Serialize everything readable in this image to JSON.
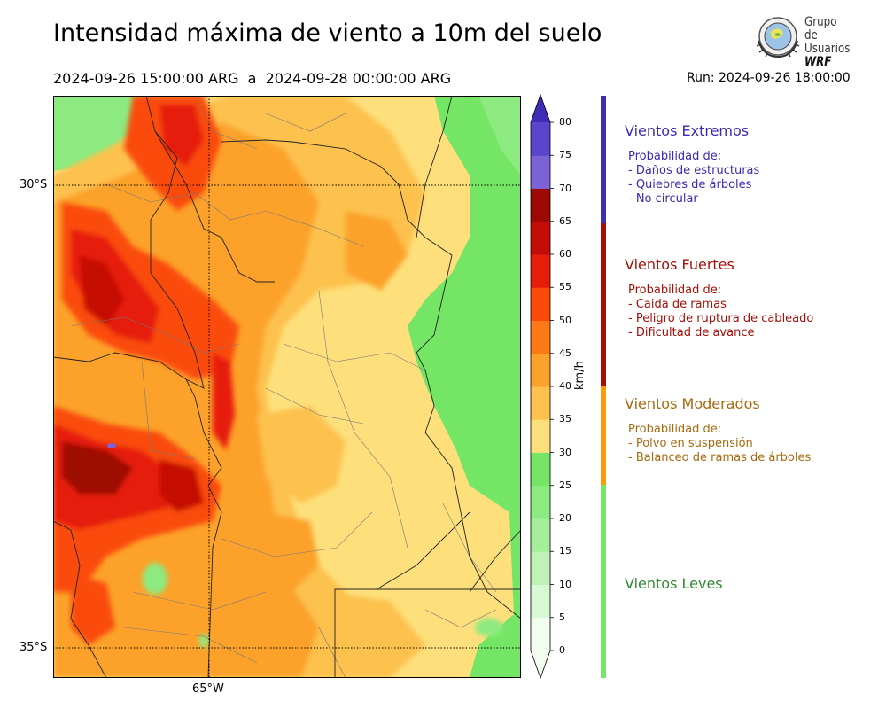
{
  "title": "Intensidad máxima de viento a 10m del suelo",
  "period": "2024-09-26 15:00:00 ARG  a  2024-09-28 00:00:00 ARG",
  "run": "Run: 2024-09-26 18:00:00",
  "logo": {
    "line1": "Grupo de",
    "line2": "Usuarios",
    "line3": "WRF"
  },
  "map": {
    "lat_labels": [
      "30°S",
      "35°S"
    ],
    "lon_labels": [
      "65°W"
    ]
  },
  "colorbar": {
    "unit": "km/h",
    "ticks": [
      "0",
      "5",
      "10",
      "15",
      "20",
      "25",
      "30",
      "35",
      "40",
      "45",
      "50",
      "55",
      "60",
      "65",
      "70",
      "75",
      "80"
    ],
    "colors": [
      "#f2fdf0",
      "#d9f8d4",
      "#bff3b6",
      "#a6ef9a",
      "#8cea80",
      "#74e564",
      "#fde07c",
      "#fdc14e",
      "#fca22a",
      "#fb7a16",
      "#fa4b0a",
      "#e61d08",
      "#c40d06",
      "#9d0704",
      "#7b63d6",
      "#5a45cc",
      "#3f2db5"
    ],
    "extend_top": "#3f2db5",
    "extend_bottom": "#f2fdf0"
  },
  "categories": [
    {
      "title": "Vientos Extremos",
      "color": "#3b2ab5",
      "lines": [
        "Probabilidad de:",
        "- Daños de estructuras",
        "- Quiebres de árboles",
        "- No circular"
      ]
    },
    {
      "title": "Vientos Fuertes",
      "color": "#a50f08",
      "lines": [
        "Probabilidad de:",
        "- Caida de ramas",
        "- Peligro de ruptura de cableado",
        "- Dificultad de avance"
      ]
    },
    {
      "title": "Vientos Moderados",
      "color": "#a8690e",
      "lines": [
        "Probabilidad de:",
        "- Polvo en suspensión",
        "- Balanceo de ramas de árboles"
      ]
    },
    {
      "title": "Vientos Leves",
      "color": "#2e8a2e",
      "lines": []
    }
  ],
  "category_bar_colors": [
    "#3f2db5",
    "#a50f08",
    "#fb9a08",
    "#74e564"
  ]
}
